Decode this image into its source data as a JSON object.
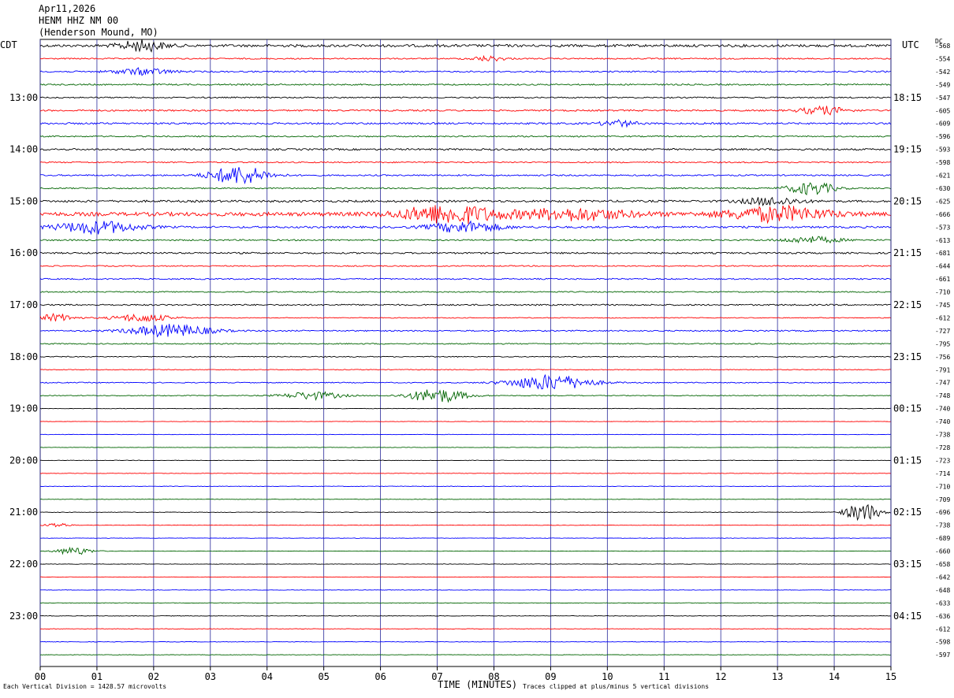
{
  "header": {
    "date": "Apr11,2026",
    "station": "HENM HHZ NM 00",
    "location": "(Henderson Mound, MO)"
  },
  "left_zone": "CDT",
  "right_zone": "UTC",
  "dc_label": "DC",
  "footer": {
    "scale_note": "Each Vertical Division = 1428.57 microvolts",
    "xlabel": "TIME (MINUTES)",
    "clip_note": "Traces clipped at plus/minus 5 vertical divisions"
  },
  "colors": {
    "trace_cycle": [
      "#000000",
      "#ff0000",
      "#0000ff",
      "#006400"
    ],
    "grid": "#2a2a9a"
  },
  "chart_data": {
    "type": "line",
    "title": "",
    "xlabel": "TIME (MINUTES)",
    "ylabel": "",
    "xlim": [
      0,
      15
    ],
    "x_ticks": [
      "00",
      "01",
      "02",
      "03",
      "04",
      "05",
      "06",
      "07",
      "08",
      "09",
      "10",
      "11",
      "12",
      "13",
      "14",
      "15"
    ],
    "grid": true,
    "left_time_labels": [
      "13:00",
      "14:00",
      "15:00",
      "16:00",
      "17:00",
      "18:00",
      "19:00",
      "20:00",
      "21:00",
      "22:00",
      "23:00"
    ],
    "right_time_labels": [
      "18:15",
      "19:15",
      "20:15",
      "21:15",
      "22:15",
      "23:15",
      "00:15",
      "01:15",
      "02:15",
      "03:15",
      "04:15"
    ],
    "label_every_n_traces": 4,
    "first_labeled_trace": 4,
    "dc_offsets": [
      "-568",
      "-554",
      "-542",
      "-549",
      "-547",
      "-605",
      "-609",
      "-596",
      "-593",
      "-598",
      "-621",
      "-630",
      "-625",
      "-666",
      "-573",
      "-613",
      "-681",
      "-644",
      "-661",
      "-710",
      "-745",
      "-612",
      "-727",
      "-795",
      "-756",
      "-791",
      "-747",
      "-748",
      "-740",
      "-740",
      "-738",
      "-728",
      "-723",
      "-714",
      "-710",
      "-709",
      "-696",
      "-738",
      "-689",
      "-660",
      "-658",
      "-642",
      "-648",
      "-633",
      "-636",
      "-612",
      "-598",
      "-597"
    ],
    "trace_activity": [
      1.6,
      0.8,
      0.9,
      0.9,
      0.8,
      1.0,
      1.1,
      0.8,
      1.1,
      0.8,
      0.9,
      0.8,
      1.3,
      2.4,
      1.2,
      0.9,
      1.0,
      0.7,
      0.8,
      0.7,
      0.9,
      0.5,
      0.8,
      0.7,
      0.6,
      0.5,
      0.6,
      0.5,
      0.3,
      0.3,
      0.3,
      0.3,
      0.3,
      0.3,
      0.3,
      0.3,
      0.3,
      0.3,
      0.3,
      0.3,
      0.3,
      0.3,
      0.3,
      0.3,
      0.3,
      0.3,
      0.3,
      0.3
    ],
    "events": [
      {
        "trace": 0,
        "minute": 1.8,
        "amplitude": 7,
        "width": 0.4
      },
      {
        "trace": 1,
        "minute": 7.9,
        "amplitude": 3,
        "width": 0.3
      },
      {
        "trace": 2,
        "minute": 1.8,
        "amplitude": 4,
        "width": 0.5
      },
      {
        "trace": 5,
        "minute": 13.8,
        "amplitude": 5,
        "width": 0.4
      },
      {
        "trace": 6,
        "minute": 10.2,
        "amplitude": 4,
        "width": 0.3
      },
      {
        "trace": 10,
        "minute": 3.5,
        "amplitude": 12,
        "width": 0.5
      },
      {
        "trace": 11,
        "minute": 13.6,
        "amplitude": 8,
        "width": 0.4
      },
      {
        "trace": 12,
        "minute": 12.9,
        "amplitude": 5,
        "width": 0.5
      },
      {
        "trace": 13,
        "minute": 7.2,
        "amplitude": 12,
        "width": 0.8
      },
      {
        "trace": 13,
        "minute": 9.4,
        "amplitude": 7,
        "width": 1.0
      },
      {
        "trace": 13,
        "minute": 13.0,
        "amplitude": 9,
        "width": 0.9
      },
      {
        "trace": 14,
        "minute": 1.0,
        "amplitude": 8,
        "width": 0.7
      },
      {
        "trace": 14,
        "minute": 7.5,
        "amplitude": 7,
        "width": 0.6
      },
      {
        "trace": 15,
        "minute": 13.6,
        "amplitude": 4,
        "width": 0.5
      },
      {
        "trace": 21,
        "minute": 0.3,
        "amplitude": 5,
        "width": 0.3
      },
      {
        "trace": 21,
        "minute": 1.8,
        "amplitude": 5,
        "width": 0.5
      },
      {
        "trace": 22,
        "minute": 2.3,
        "amplitude": 8,
        "width": 0.7
      },
      {
        "trace": 26,
        "minute": 9.0,
        "amplitude": 10,
        "width": 0.7
      },
      {
        "trace": 27,
        "minute": 4.8,
        "amplitude": 5,
        "width": 0.5
      },
      {
        "trace": 27,
        "minute": 7.0,
        "amplitude": 9,
        "width": 0.5
      },
      {
        "trace": 36,
        "minute": 14.5,
        "amplitude": 12,
        "width": 0.3
      },
      {
        "trace": 37,
        "minute": 0.3,
        "amplitude": 3,
        "width": 0.2
      },
      {
        "trace": 39,
        "minute": 0.6,
        "amplitude": 5,
        "width": 0.3
      }
    ]
  }
}
